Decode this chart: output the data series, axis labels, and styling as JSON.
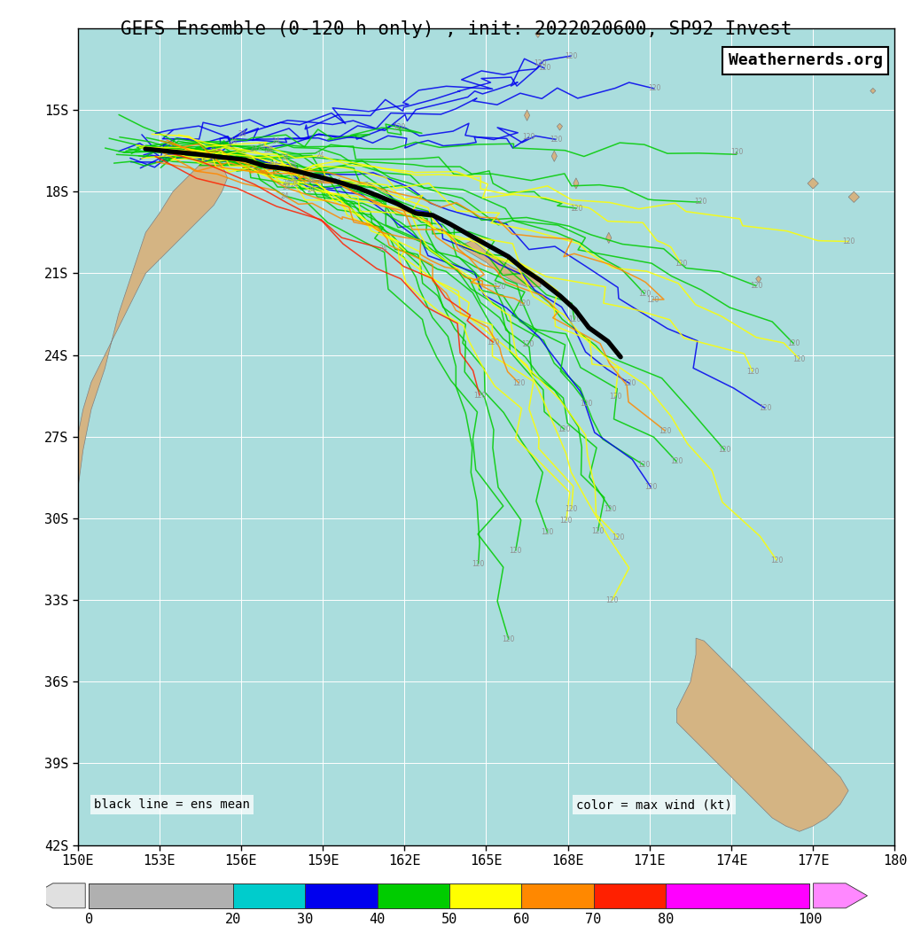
{
  "title": "GEFS Ensemble (0-120 h only) , init: 2022020600, SP92 Invest",
  "watermark": "Weathernerds.org",
  "lon_min": 150,
  "lon_max": 180,
  "lat_min": -42,
  "lat_max": -12,
  "lon_ticks": [
    150,
    153,
    156,
    159,
    162,
    165,
    168,
    171,
    174,
    177,
    180
  ],
  "lat_ticks": [
    -15,
    -18,
    -21,
    -24,
    -27,
    -30,
    -33,
    -36,
    -39,
    -42
  ],
  "colorbar_bounds": [
    0,
    20,
    30,
    40,
    50,
    60,
    70,
    80,
    100
  ],
  "colorbar_colors": [
    "#b0b0b0",
    "#00cccc",
    "#0000ee",
    "#00cc00",
    "#ffff00",
    "#ff8800",
    "#ff2000",
    "#ff00ff"
  ],
  "legend_text_left": "black line = ens mean",
  "legend_text_right": "color = max wind (kt)",
  "ocean_color": "#aadddd",
  "land_color": "#d4b483",
  "land_edge_color": "#808080",
  "grid_color": "#ffffff",
  "title_fontsize": 15,
  "tick_fontsize": 11
}
